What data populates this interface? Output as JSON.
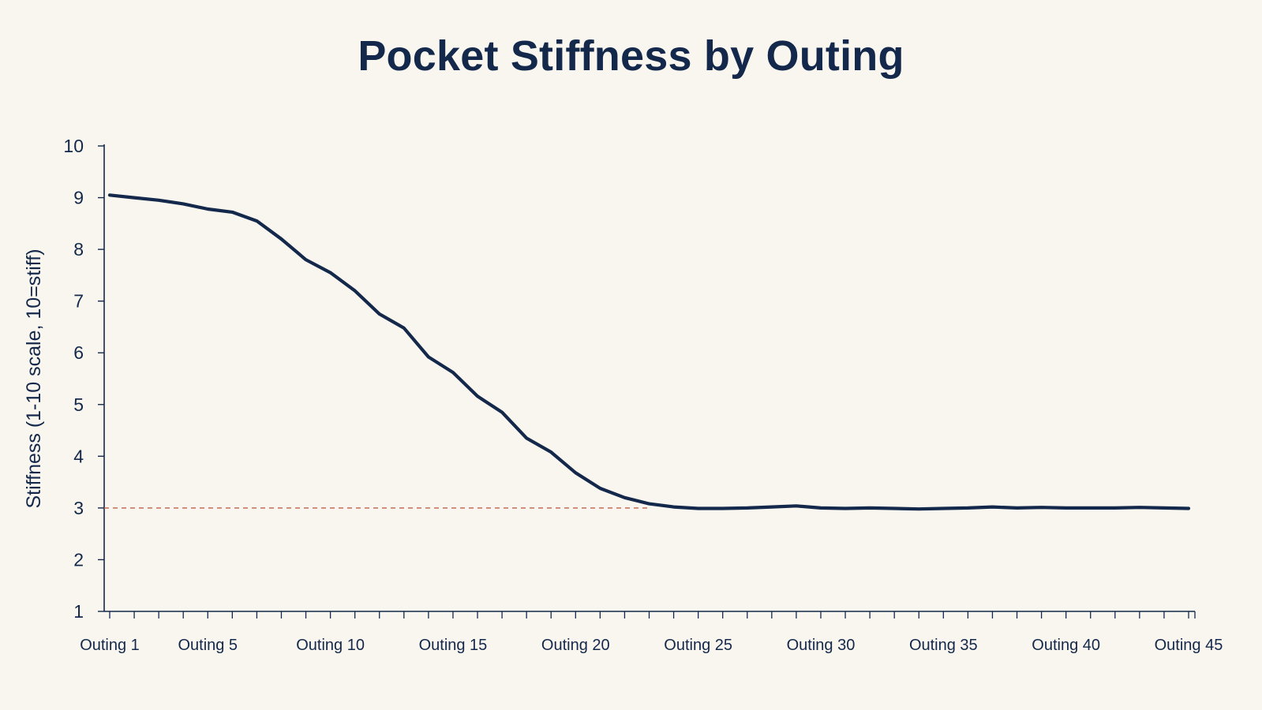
{
  "chart_data": {
    "type": "line",
    "title": "Pocket Stiffness by Outing",
    "xlabel": "",
    "ylabel": "Stiffness (1-10 scale, 10=stiff)",
    "ylim": [
      1,
      10
    ],
    "yticks": [
      1,
      2,
      3,
      4,
      5,
      6,
      7,
      8,
      9,
      10
    ],
    "x": [
      "Outing 1",
      "Outing 2",
      "Outing 3",
      "Outing 4",
      "Outing 5",
      "Outing 6",
      "Outing 7",
      "Outing 8",
      "Outing 9",
      "Outing 10",
      "Outing 11",
      "Outing 12",
      "Outing 13",
      "Outing 14",
      "Outing 15",
      "Outing 16",
      "Outing 17",
      "Outing 18",
      "Outing 19",
      "Outing 20",
      "Outing 21",
      "Outing 22",
      "Outing 23",
      "Outing 24",
      "Outing 25",
      "Outing 26",
      "Outing 27",
      "Outing 28",
      "Outing 29",
      "Outing 30",
      "Outing 31",
      "Outing 32",
      "Outing 33",
      "Outing 34",
      "Outing 35",
      "Outing 36",
      "Outing 37",
      "Outing 38",
      "Outing 39",
      "Outing 40",
      "Outing 41",
      "Outing 42",
      "Outing 43",
      "Outing 44",
      "Outing 45"
    ],
    "xtick_labels": [
      "Outing 1",
      "Outing 5",
      "Outing 10",
      "Outing 15",
      "Outing 20",
      "Outing 25",
      "Outing 30",
      "Outing 35",
      "Outing 40",
      "Outing 45"
    ],
    "series": [
      {
        "values": [
          9.05,
          9.0,
          8.95,
          8.88,
          8.78,
          8.72,
          8.55,
          8.2,
          7.8,
          7.55,
          7.2,
          6.75,
          6.48,
          5.92,
          5.62,
          5.16,
          4.85,
          4.35,
          4.08,
          3.68,
          3.38,
          3.2,
          3.08,
          3.02,
          2.99,
          2.99,
          3.0,
          3.02,
          3.04,
          3.0,
          2.99,
          3.0,
          2.99,
          2.98,
          2.99,
          3.0,
          3.02,
          3.0,
          3.01,
          3.0,
          3.0,
          3.0,
          3.01,
          3.0,
          2.99
        ],
        "color": "#13284a"
      }
    ],
    "reference_line": {
      "y": 3,
      "style": "dashed",
      "color": "#c0604a"
    },
    "grid": false,
    "colors": {
      "background": "#f9f6ef",
      "text": "#13284a",
      "axis": "#13284a"
    }
  }
}
